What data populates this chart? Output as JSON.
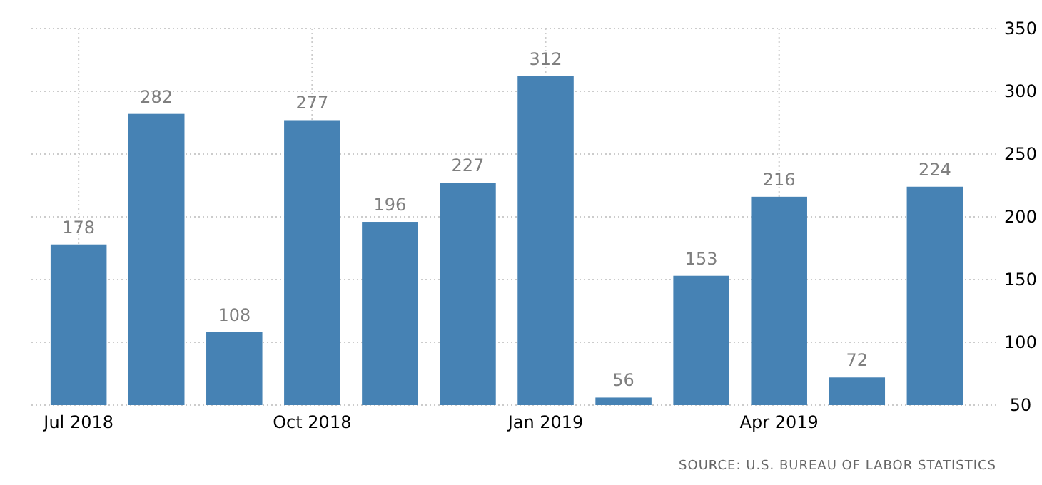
{
  "chart_data": {
    "type": "bar",
    "categories": [
      "Jul 2018",
      null,
      null,
      "Oct 2018",
      null,
      null,
      "Jan 2019",
      null,
      null,
      "Apr 2019",
      null,
      null
    ],
    "values": [
      178,
      282,
      108,
      277,
      196,
      227,
      312,
      56,
      153,
      216,
      72,
      224
    ],
    "color": "#4682b4",
    "ylim": [
      50,
      350
    ],
    "yticks": [
      50,
      100,
      150,
      200,
      250,
      300,
      350
    ],
    "grid": true,
    "data_labels": true,
    "annotations": [
      "SOURCE: U.S. BUREAU OF LABOR STATISTICS"
    ]
  }
}
